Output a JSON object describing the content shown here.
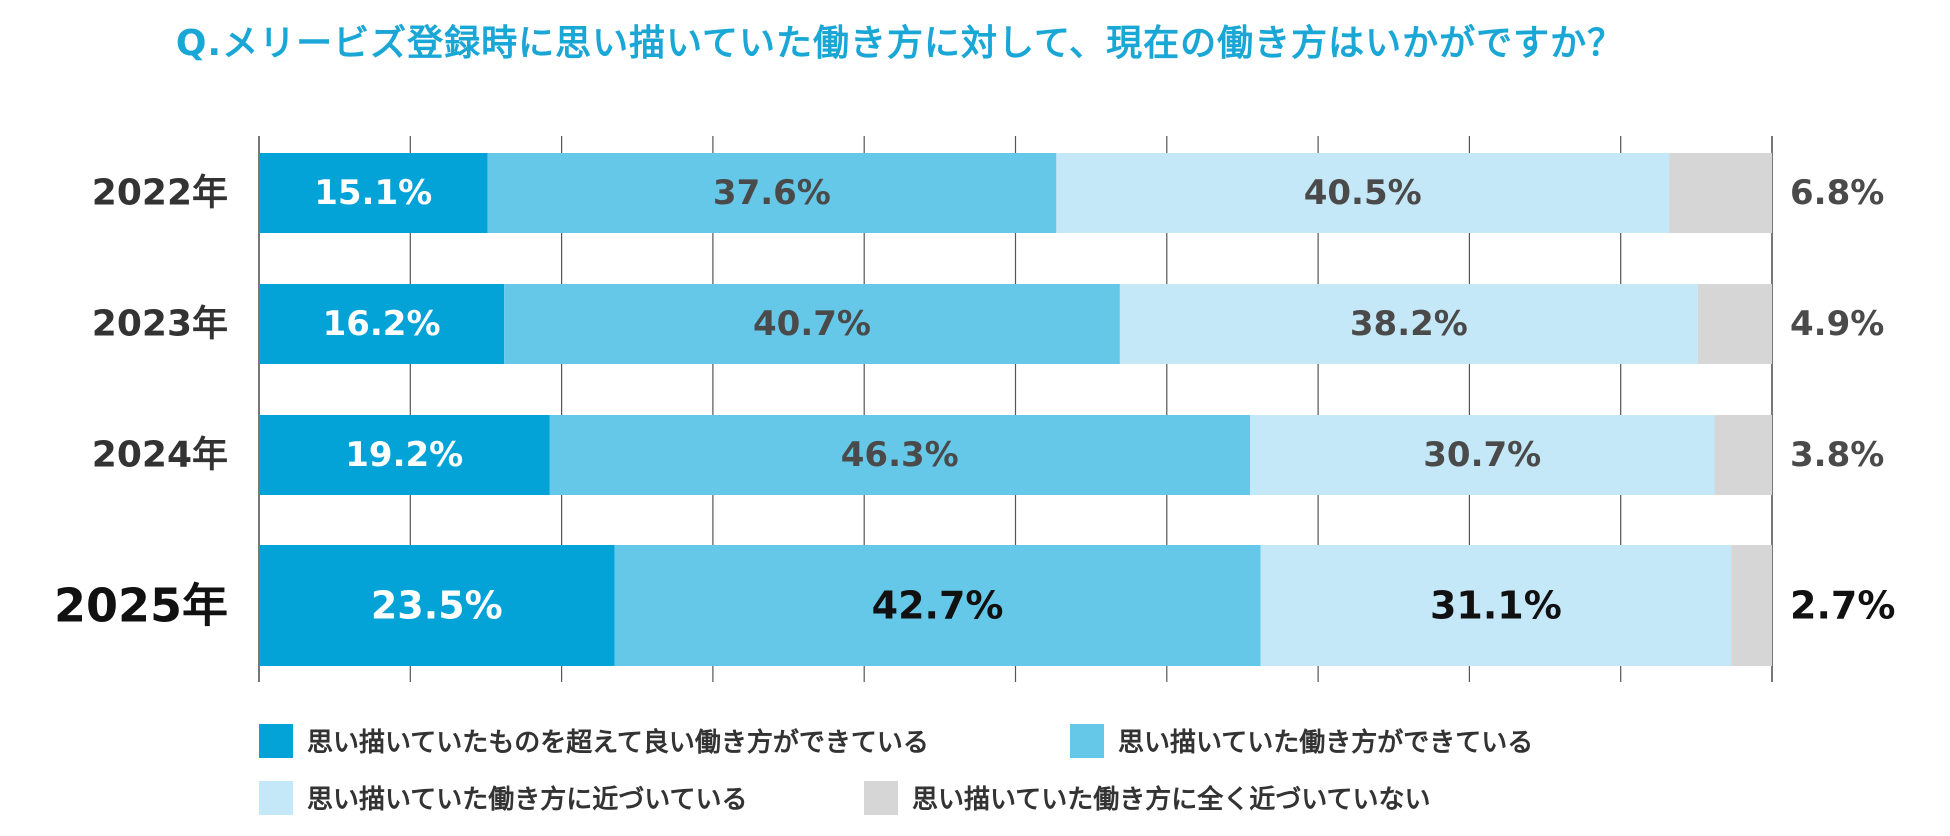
{
  "colors": {
    "title": "#1aa7d6",
    "series": [
      "#03a3d8",
      "#65c8e8",
      "#c4e8f7",
      "#d6d6d6"
    ],
    "label_white": "#ffffff",
    "label_dark": "#4a4a4a",
    "label_black": "#111111",
    "category_text": "#333333",
    "grid": "#555555"
  },
  "chart_data": {
    "type": "bar",
    "orientation": "horizontal",
    "stacked": true,
    "title": "Q.メリービズ登録時に思い描いていた働き方に対して、現在の働き方はいかがですか？",
    "categories": [
      "2022年",
      "2023年",
      "2024年",
      "2025年"
    ],
    "highlight_category": "2025年",
    "series": [
      {
        "name": "思い描いていたものを超えて良い働き方ができている",
        "values": [
          15.1,
          16.2,
          19.2,
          23.5
        ],
        "labels": [
          "15.1%",
          "16.2%",
          "19.2%",
          "23.5%"
        ]
      },
      {
        "name": "思い描いていた働き方ができている",
        "values": [
          37.6,
          40.7,
          46.3,
          42.7
        ],
        "labels": [
          "37.6%",
          "40.7%",
          "46.3%",
          "42.7%"
        ]
      },
      {
        "name": "思い描いていた働き方に近づいている",
        "values": [
          40.5,
          38.2,
          30.7,
          31.1
        ],
        "labels": [
          "40.5%",
          "38.2%",
          "30.7%",
          "31.1%"
        ]
      },
      {
        "name": "思い描いていた働き方に全く近づいていない",
        "values": [
          6.8,
          4.9,
          3.8,
          2.7
        ],
        "labels": [
          "6.8%",
          "4.9%",
          "3.8%",
          "2.7%"
        ]
      }
    ],
    "xlim": [
      0,
      100
    ],
    "grid": true,
    "legend_position": "bottom"
  }
}
